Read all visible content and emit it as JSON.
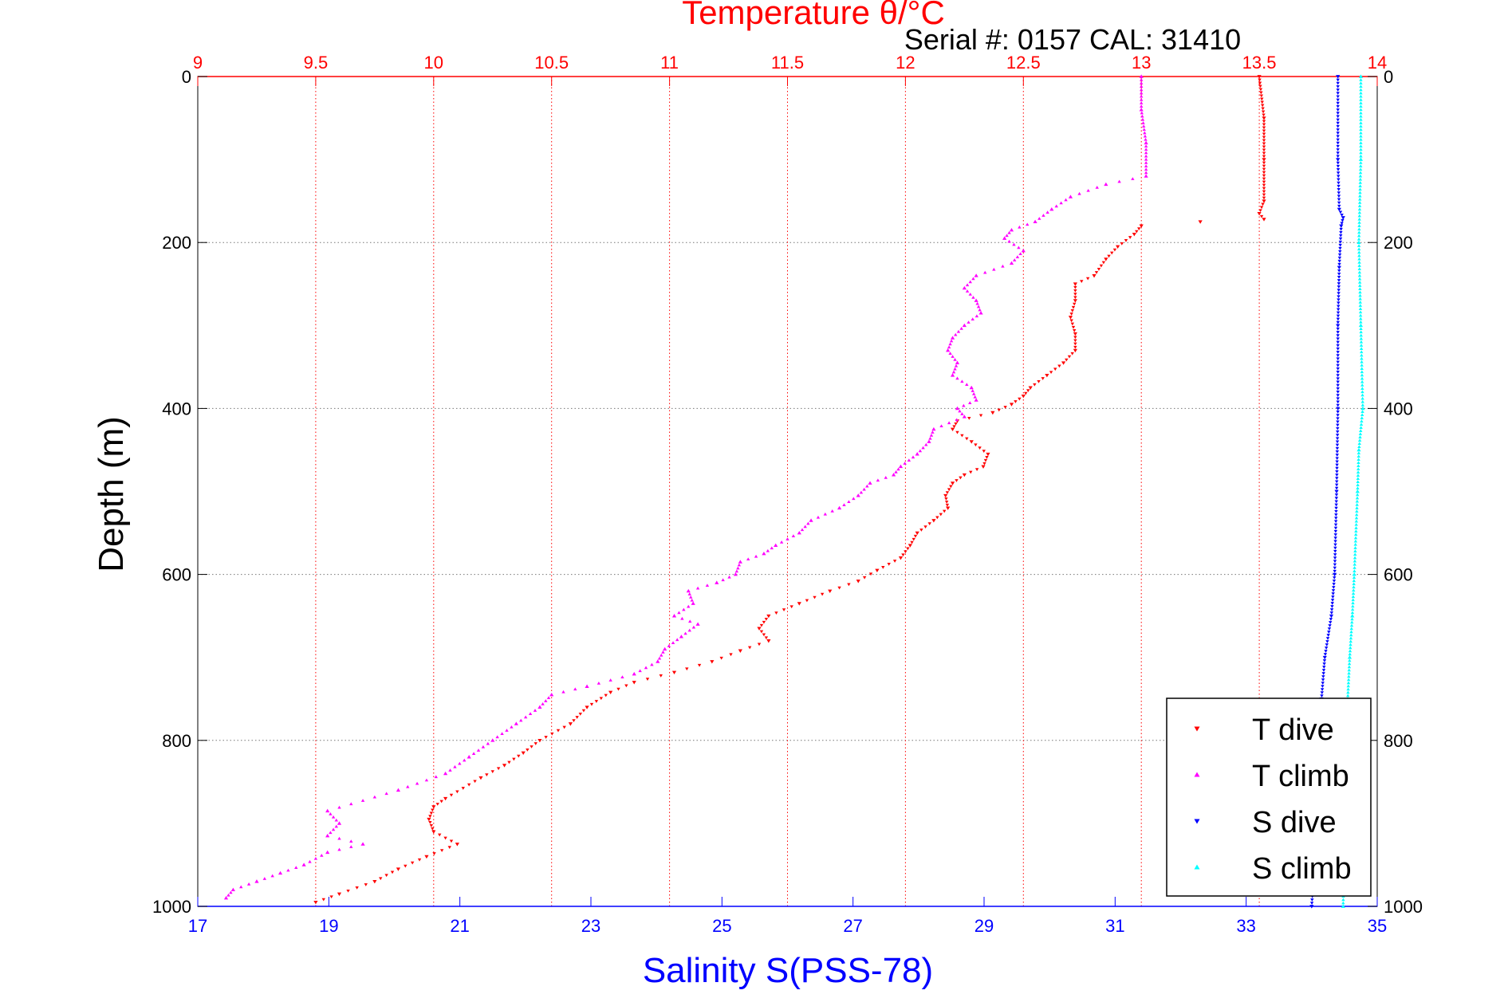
{
  "chart_data": {
    "type": "scatter",
    "title": "Temperature θ/°C",
    "subtitle": "Serial #: 0157  CAL: 31410",
    "ylabel": "Depth (m)",
    "xlabel_bottom": "Salinity S(PSS-78)",
    "xlabel_top": "Temperature θ/°C",
    "ylim": [
      0,
      1000
    ],
    "y_reversed": true,
    "xlim_bottom": [
      17,
      35
    ],
    "xlim_top": [
      9,
      14
    ],
    "y_ticks": [
      "0",
      "200",
      "400",
      "600",
      "800",
      "1000"
    ],
    "bottom_ticks": [
      "17",
      "19",
      "21",
      "23",
      "25",
      "27",
      "29",
      "31",
      "33",
      "35"
    ],
    "top_ticks": [
      "9",
      "9.5",
      "10",
      "10.5",
      "11",
      "11.5",
      "12",
      "12.5",
      "13",
      "13.5",
      "14"
    ],
    "grid": true,
    "legend_position": "bottom-right",
    "colors": {
      "temperature_axis": "#ff0000",
      "salinity_axis": "#0000ff",
      "grid": "#888888"
    },
    "series": [
      {
        "name": "T dive",
        "axis": "top",
        "color": "#ff0000",
        "marker": "triangle-down",
        "points": [
          [
            13.5,
            0
          ],
          [
            13.52,
            50
          ],
          [
            13.52,
            100
          ],
          [
            13.52,
            150
          ],
          [
            13.5,
            165
          ],
          [
            13.52,
            172
          ],
          [
            13.25,
            175
          ],
          [
            13.0,
            180
          ],
          [
            12.97,
            190
          ],
          [
            12.9,
            205
          ],
          [
            12.85,
            220
          ],
          [
            12.8,
            240
          ],
          [
            12.72,
            250
          ],
          [
            12.72,
            270
          ],
          [
            12.7,
            290
          ],
          [
            12.72,
            310
          ],
          [
            12.72,
            330
          ],
          [
            12.67,
            345
          ],
          [
            12.6,
            360
          ],
          [
            12.53,
            375
          ],
          [
            12.5,
            385
          ],
          [
            12.45,
            395
          ],
          [
            12.37,
            405
          ],
          [
            12.22,
            415
          ],
          [
            12.2,
            425
          ],
          [
            12.28,
            440
          ],
          [
            12.35,
            455
          ],
          [
            12.33,
            470
          ],
          [
            12.25,
            480
          ],
          [
            12.2,
            490
          ],
          [
            12.17,
            505
          ],
          [
            12.18,
            520
          ],
          [
            12.12,
            535
          ],
          [
            12.05,
            550
          ],
          [
            12.02,
            565
          ],
          [
            11.98,
            580
          ],
          [
            11.88,
            595
          ],
          [
            11.8,
            608
          ],
          [
            11.68,
            620
          ],
          [
            11.55,
            635
          ],
          [
            11.42,
            650
          ],
          [
            11.38,
            665
          ],
          [
            11.42,
            680
          ],
          [
            11.3,
            692
          ],
          [
            11.18,
            705
          ],
          [
            11.02,
            718
          ],
          [
            10.85,
            730
          ],
          [
            10.75,
            742
          ],
          [
            10.65,
            760
          ],
          [
            10.58,
            780
          ],
          [
            10.45,
            800
          ],
          [
            10.38,
            815
          ],
          [
            10.3,
            830
          ],
          [
            10.2,
            845
          ],
          [
            10.05,
            870
          ],
          [
            10.0,
            880
          ],
          [
            9.98,
            895
          ],
          [
            10.0,
            910
          ],
          [
            10.1,
            925
          ],
          [
            9.97,
            940
          ],
          [
            9.85,
            955
          ],
          [
            9.75,
            970
          ],
          [
            9.6,
            985
          ],
          [
            9.5,
            995
          ]
        ]
      },
      {
        "name": "T climb",
        "axis": "top",
        "color": "#ff00ff",
        "marker": "triangle-up",
        "points": [
          [
            13.0,
            0
          ],
          [
            13.0,
            40
          ],
          [
            13.02,
            80
          ],
          [
            13.02,
            120
          ],
          [
            12.85,
            130
          ],
          [
            12.7,
            145
          ],
          [
            12.62,
            160
          ],
          [
            12.55,
            175
          ],
          [
            12.45,
            185
          ],
          [
            12.42,
            195
          ],
          [
            12.5,
            210
          ],
          [
            12.45,
            225
          ],
          [
            12.3,
            240
          ],
          [
            12.25,
            255
          ],
          [
            12.3,
            270
          ],
          [
            12.32,
            285
          ],
          [
            12.25,
            300
          ],
          [
            12.2,
            315
          ],
          [
            12.18,
            330
          ],
          [
            12.22,
            345
          ],
          [
            12.2,
            360
          ],
          [
            12.28,
            375
          ],
          [
            12.3,
            390
          ],
          [
            12.22,
            400
          ],
          [
            12.25,
            410
          ],
          [
            12.12,
            425
          ],
          [
            12.1,
            440
          ],
          [
            12.05,
            455
          ],
          [
            11.98,
            470
          ],
          [
            11.95,
            480
          ],
          [
            11.85,
            490
          ],
          [
            11.8,
            505
          ],
          [
            11.72,
            520
          ],
          [
            11.6,
            535
          ],
          [
            11.55,
            550
          ],
          [
            11.45,
            565
          ],
          [
            11.4,
            575
          ],
          [
            11.3,
            585
          ],
          [
            11.28,
            600
          ],
          [
            11.2,
            610
          ],
          [
            11.08,
            620
          ],
          [
            11.1,
            635
          ],
          [
            11.02,
            650
          ],
          [
            11.12,
            660
          ],
          [
            11.05,
            675
          ],
          [
            10.98,
            690
          ],
          [
            10.95,
            705
          ],
          [
            10.85,
            720
          ],
          [
            10.65,
            735
          ],
          [
            10.5,
            745
          ],
          [
            10.45,
            760
          ],
          [
            10.35,
            780
          ],
          [
            10.25,
            800
          ],
          [
            10.15,
            820
          ],
          [
            10.05,
            840
          ],
          [
            9.85,
            860
          ],
          [
            9.55,
            885
          ],
          [
            9.6,
            900
          ],
          [
            9.55,
            915
          ],
          [
            9.7,
            925
          ],
          [
            9.55,
            935
          ],
          [
            9.45,
            950
          ],
          [
            9.35,
            960
          ],
          [
            9.25,
            970
          ],
          [
            9.15,
            980
          ],
          [
            9.12,
            990
          ]
        ]
      },
      {
        "name": "S dive",
        "axis": "bottom",
        "color": "#0000ff",
        "marker": "triangle-down",
        "points": [
          [
            34.4,
            0
          ],
          [
            34.4,
            100
          ],
          [
            34.42,
            160
          ],
          [
            34.48,
            170
          ],
          [
            34.45,
            180
          ],
          [
            34.42,
            230
          ],
          [
            34.4,
            300
          ],
          [
            34.4,
            400
          ],
          [
            34.38,
            500
          ],
          [
            34.35,
            600
          ],
          [
            34.3,
            650
          ],
          [
            34.2,
            700
          ],
          [
            34.15,
            750
          ],
          [
            34.12,
            800
          ],
          [
            34.08,
            900
          ],
          [
            34.0,
            1000
          ]
        ]
      },
      {
        "name": "S climb",
        "axis": "bottom",
        "color": "#00ffff",
        "marker": "triangle-up",
        "points": [
          [
            34.75,
            0
          ],
          [
            34.75,
            100
          ],
          [
            34.72,
            200
          ],
          [
            34.75,
            300
          ],
          [
            34.78,
            400
          ],
          [
            34.72,
            450
          ],
          [
            34.7,
            500
          ],
          [
            34.65,
            600
          ],
          [
            34.62,
            650
          ],
          [
            34.58,
            700
          ],
          [
            34.55,
            750
          ],
          [
            34.52,
            800
          ],
          [
            34.5,
            900
          ],
          [
            34.48,
            1000
          ]
        ]
      }
    ]
  }
}
